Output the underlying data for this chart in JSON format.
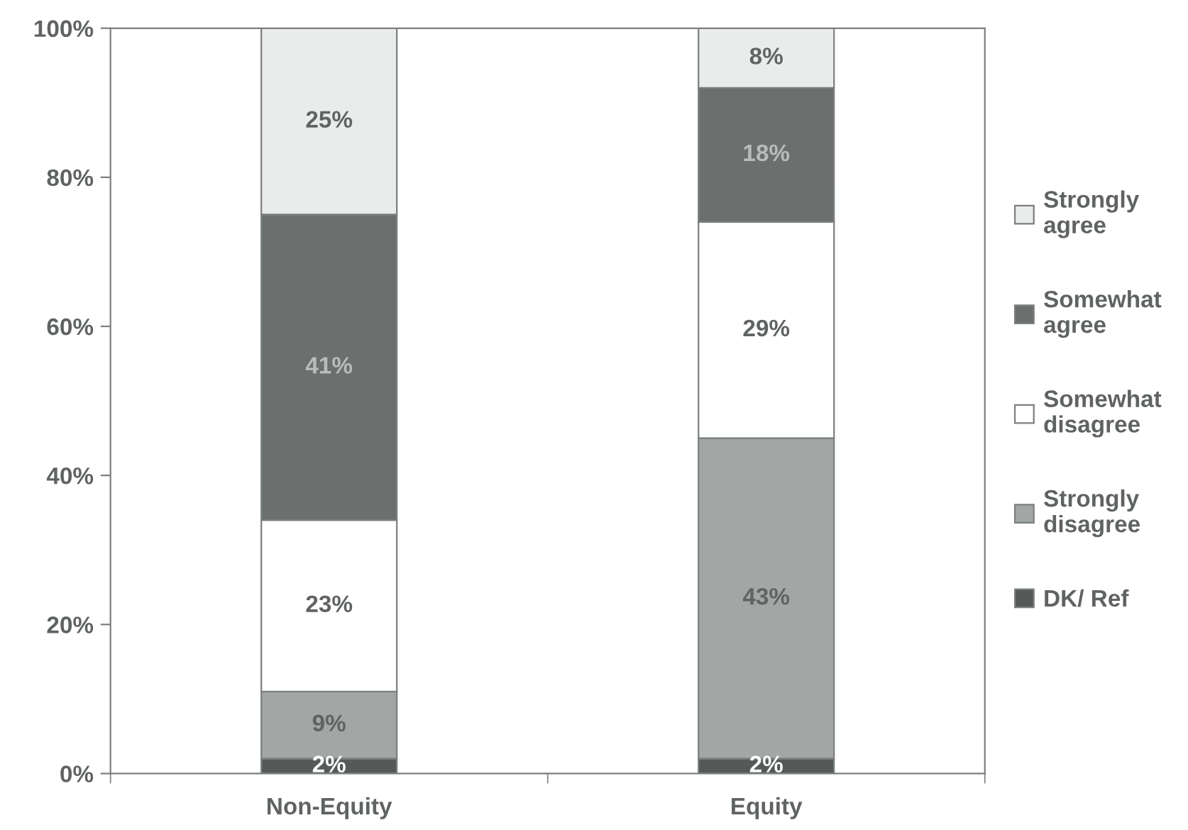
{
  "chart_data": {
    "type": "bar",
    "stacked": true,
    "categories": [
      "Non-Equity",
      "Equity"
    ],
    "series": [
      {
        "name": "DK/ Ref",
        "color": "#555a58",
        "values": [
          2,
          2
        ],
        "value_labels": [
          "2%",
          "2%"
        ]
      },
      {
        "name": "Strongly\ndisagree",
        "color": "#a2a6a4",
        "values": [
          9,
          43
        ],
        "value_labels": [
          "9%",
          "43%"
        ]
      },
      {
        "name": "Somewhat\ndisagree",
        "color": "#ffffff",
        "values": [
          23,
          29
        ],
        "value_labels": [
          "23%",
          "29%"
        ]
      },
      {
        "name": "Somewhat\nagree",
        "color": "#6b706e",
        "values": [
          41,
          18
        ],
        "value_labels": [
          "41%",
          "18%"
        ]
      },
      {
        "name": "Strongly\nagree",
        "color": "#e9ecea",
        "values": [
          25,
          8
        ],
        "value_labels": [
          "25%",
          "8%"
        ]
      }
    ],
    "ylim": [
      0,
      100
    ],
    "yticks": [
      {
        "value": 0,
        "label": "0%"
      },
      {
        "value": 20,
        "label": "20%"
      },
      {
        "value": 40,
        "label": "40%"
      },
      {
        "value": 60,
        "label": "60%"
      },
      {
        "value": 80,
        "label": "80%"
      },
      {
        "value": 100,
        "label": "100%"
      }
    ],
    "grid": false,
    "legend": "right"
  }
}
